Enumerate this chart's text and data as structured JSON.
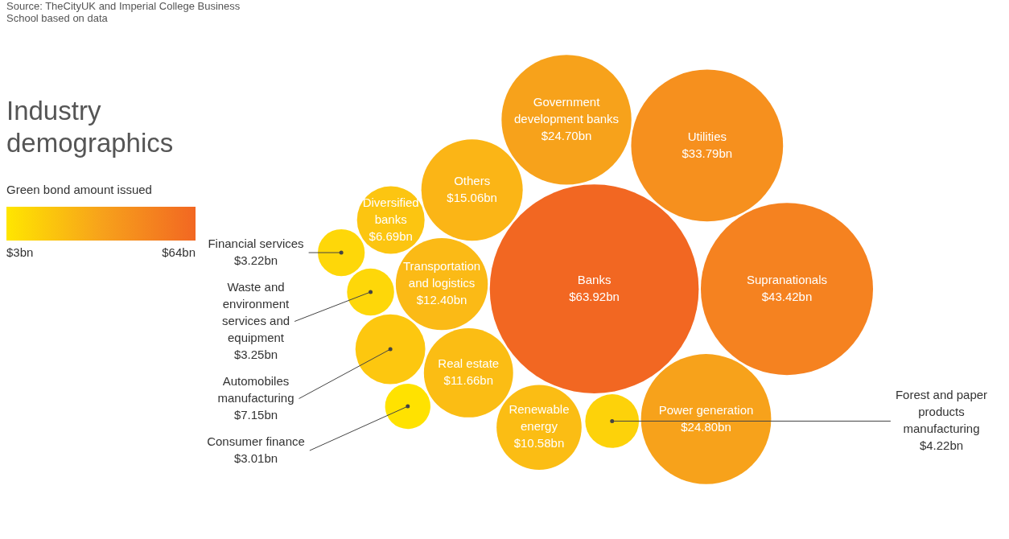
{
  "chart_data": {
    "type": "other",
    "title": "Industry demographics",
    "annotations": [
      "Source: TheCityUK and Imperial College Business School based on data",
      "$3bn",
      "$64bn"
    ],
    "clabel": "Green bond amount issued",
    "categories": [
      "Banks",
      "Supranationals",
      "Utilities",
      "Power generation",
      "Government development banks",
      "Others",
      "Transportation and logistics",
      "Real estate",
      "Renewable energy",
      "Automobiles manufacturing",
      "Diversified banks",
      "Forest and paper products manufacturing",
      "Waste and environment services and equipment",
      "Financial services",
      "Consumer finance"
    ],
    "values": [
      63.92,
      43.42,
      33.79,
      24.8,
      24.7,
      15.06,
      12.4,
      11.66,
      10.58,
      7.15,
      6.69,
      4.22,
      3.25,
      3.22,
      3.01
    ],
    "value_labels": [
      "$63.92bn",
      "$43.42bn",
      "$33.79bn",
      "$24.80bn",
      "$24.70bn",
      "$15.06bn",
      "$12.40bn",
      "$11.66bn",
      "$10.58bn",
      "$7.15bn",
      "$6.69bn",
      "$4.22bn",
      "$3.25bn",
      "$3.22bn",
      "$3.01bn"
    ],
    "colors": [
      "#f26722",
      "#f58220",
      "#f6901e",
      "#f7a21b",
      "#f7a21b",
      "#fbb516",
      "#fbba16",
      "#fbbd14",
      "#fbbd14",
      "#fdc70f",
      "#fcc511",
      "#fdd20a",
      "#fed709",
      "#fed709",
      "#ffe200"
    ]
  }
}
